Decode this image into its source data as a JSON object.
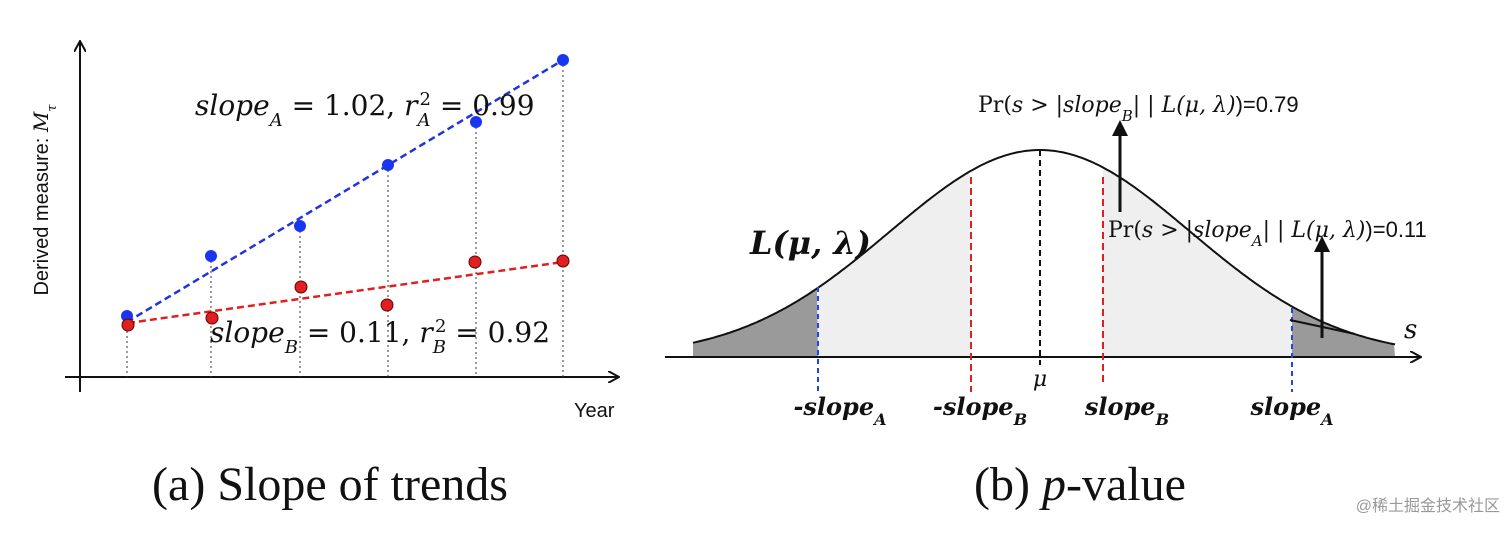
{
  "panel_a": {
    "y_label": {
      "text": "Derived measure: ",
      "symbol": "M",
      "sub": "τ"
    },
    "x_label": "Year",
    "annotation_a": {
      "slope": "slope",
      "slope_sub": "A",
      "eq1": " = 1.02, ",
      "r": "r",
      "r_sub": "A",
      "r_sup": "2",
      "eq2": " = 0.99"
    },
    "annotation_b": {
      "slope": "slope",
      "slope_sub": "B",
      "eq1": " = 0.11, ",
      "r": "r",
      "r_sub": "B",
      "r_sup": "2",
      "eq2": " = 0.92"
    },
    "caption": "(a) Slope of trends"
  },
  "panel_b": {
    "curve_label": "L(μ, λ)",
    "prob_b": {
      "pre": "Pr(",
      "s": "s",
      "gt": " > |",
      "slope": "slope",
      "sub": "B",
      "mid": "| | ",
      "L": "L(μ, λ)",
      "post": ")=0.79"
    },
    "prob_a": {
      "pre": "Pr(",
      "s": "s",
      "gt": " > |",
      "slope": "slope",
      "sub": "A",
      "mid": "| | ",
      "L": "L(μ, λ)",
      "post": ")=0.11"
    },
    "axis_label": "s",
    "mu": "μ",
    "ticks": [
      {
        "text": "-slope",
        "sub": "A"
      },
      {
        "text": "-slope",
        "sub": "B"
      },
      {
        "text": "slope",
        "sub": "B"
      },
      {
        "text": "slope",
        "sub": "A"
      }
    ],
    "caption_pre": "(b) ",
    "caption_p": "p",
    "caption_post": "-value"
  },
  "watermark": "@稀土掘金技术社区"
}
